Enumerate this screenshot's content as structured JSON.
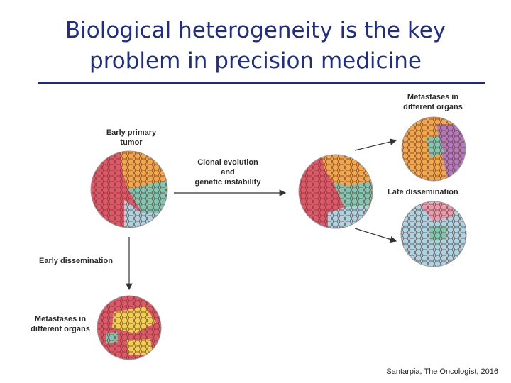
{
  "slide": {
    "title_line1": "Biological heterogeneity is the key",
    "title_line2": "problem in precision medicine",
    "credit": "Santarpia, The Oncologist, 2016"
  },
  "labels": {
    "early_primary_line1": "Early primary",
    "early_primary_line2": "tumor",
    "clonal_line1": "Clonal evolution",
    "clonal_line2": "and",
    "clonal_line3": "genetic instability",
    "late_dissemination": "Late dissemination",
    "early_dissemination": "Early dissemination",
    "metastases_top_line1": "Metastases in",
    "metastases_top_line2": "different organs",
    "metastases_bottom_line1": "Metastases in",
    "metastases_bottom_line2": "different organs"
  },
  "colors": {
    "title": "#1f2d8a",
    "rule": "#1a2a86",
    "clone_red": "#e0566a",
    "clone_orange": "#f2a84a",
    "clone_teal": "#7cc8b4",
    "clone_blue": "#a8d4e6",
    "clone_purple": "#b07ac0",
    "clone_yellow": "#f0d050",
    "clone_pink": "#e89ab0",
    "cell_outline": "#6a3a2a",
    "arrow": "#333333"
  },
  "icons": {
    "tumor_cells": "cell-cluster-icon",
    "arrow": "arrow-icon"
  }
}
